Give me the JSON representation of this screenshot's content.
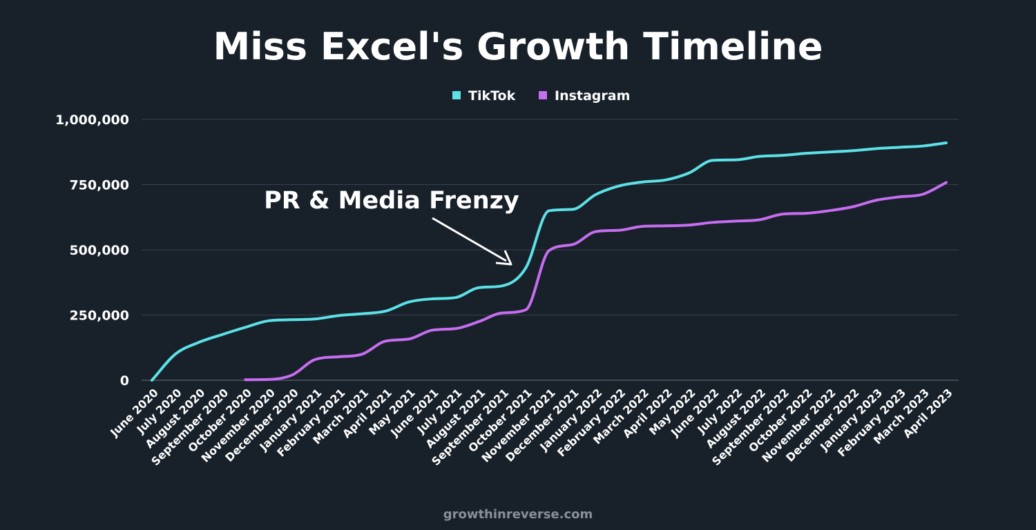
{
  "chart_data": {
    "type": "line",
    "title": "Miss Excel's Growth Timeline",
    "categories": [
      "June 2020",
      "July 2020",
      "August 2020",
      "September 2020",
      "October 2020",
      "November 2020",
      "December 2020",
      "January 2021",
      "February 2021",
      "March 2021",
      "April 2021",
      "May 2021",
      "June 2021",
      "July 2021",
      "August 2021",
      "September 2021",
      "October 2021",
      "November 2021",
      "December 2021",
      "January 2022",
      "February 2022",
      "March 2022",
      "April 2022",
      "May 2022",
      "June 2022",
      "July 2022",
      "August 2022",
      "September 2022",
      "October 2022",
      "November 2022",
      "December 2022",
      "January 2023",
      "February 2023",
      "March 2023",
      "April 2023"
    ],
    "series": [
      {
        "name": "TikTok",
        "color": "#5ce1e6",
        "values": [
          0,
          100000,
          145000,
          175000,
          203000,
          228000,
          232000,
          235000,
          248000,
          255000,
          265000,
          300000,
          312000,
          317000,
          355000,
          362000,
          430000,
          650000,
          655000,
          712000,
          745000,
          760000,
          768000,
          795000,
          843000,
          845000,
          858000,
          862000,
          870000,
          875000,
          880000,
          888000,
          893000,
          898000,
          910000
        ]
      },
      {
        "name": "Instagram",
        "color": "#c66ef0",
        "values": [
          null,
          null,
          null,
          null,
          2000,
          3000,
          20000,
          80000,
          90000,
          100000,
          150000,
          158000,
          192000,
          198000,
          225000,
          258000,
          270000,
          497000,
          520000,
          570000,
          575000,
          590000,
          592000,
          595000,
          605000,
          610000,
          615000,
          637000,
          640000,
          650000,
          665000,
          690000,
          703000,
          713000,
          758000
        ]
      }
    ],
    "ylim": [
      0,
      1000000
    ],
    "yticks": [
      0,
      250000,
      500000,
      750000,
      1000000
    ],
    "ytick_labels": [
      "0",
      "250,000",
      "500,000",
      "750,000",
      "1,000,000"
    ],
    "grid": true,
    "legend": "top-center",
    "annotation": {
      "text": "PR & Media Frenzy",
      "points_to": "October 2021"
    },
    "source": "growthinreverse.com"
  }
}
